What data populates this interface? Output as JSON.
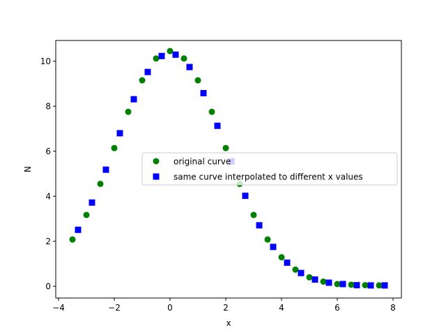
{
  "chart_data": {
    "type": "scatter",
    "title": "",
    "xlabel": "x",
    "ylabel": "N",
    "xlim": [
      -4.1,
      8.3
    ],
    "ylim": [
      -0.52,
      10.92
    ],
    "xticks": [
      -4,
      -2,
      0,
      2,
      4,
      6,
      8
    ],
    "xtick_labels": [
      "−4",
      "−2",
      "0",
      "2",
      "4",
      "6",
      "8"
    ],
    "yticks": [
      0,
      2,
      4,
      6,
      8,
      10
    ],
    "ytick_labels": [
      "0",
      "2",
      "4",
      "6",
      "8",
      "10"
    ],
    "grid": false,
    "legend": "center-right",
    "series": [
      {
        "name": "original curve",
        "marker": "circle",
        "color": "#008000",
        "x": [
          -3.5,
          -3.0,
          -2.5,
          -2.0,
          -1.5,
          -1.0,
          -0.5,
          0.0,
          0.5,
          1.0,
          1.5,
          2.0,
          2.5,
          3.0,
          3.5,
          4.0,
          4.5,
          5.0,
          5.5,
          6.0,
          6.5,
          7.0,
          7.5
        ],
        "y": [
          2.08,
          3.17,
          4.55,
          6.14,
          7.75,
          9.15,
          10.12,
          10.45,
          10.12,
          9.15,
          7.75,
          6.14,
          4.55,
          3.17,
          2.08,
          1.29,
          0.74,
          0.4,
          0.21,
          0.1,
          0.07,
          0.05,
          0.04
        ]
      },
      {
        "name": "same curve interpolated to different x values",
        "marker": "square",
        "color": "#0000ff",
        "x": [
          -3.3,
          -2.8,
          -2.3,
          -1.8,
          -1.3,
          -0.8,
          -0.3,
          0.2,
          0.7,
          1.2,
          1.7,
          2.2,
          2.7,
          3.2,
          3.7,
          4.2,
          4.7,
          5.2,
          5.7,
          6.2,
          6.7,
          7.2,
          7.7
        ],
        "y": [
          2.51,
          3.72,
          5.18,
          6.8,
          8.31,
          9.52,
          10.23,
          10.29,
          9.74,
          8.58,
          7.13,
          5.55,
          4.02,
          2.71,
          1.75,
          1.05,
          0.59,
          0.3,
          0.16,
          0.1,
          0.05,
          0.04,
          0.04
        ]
      }
    ]
  }
}
